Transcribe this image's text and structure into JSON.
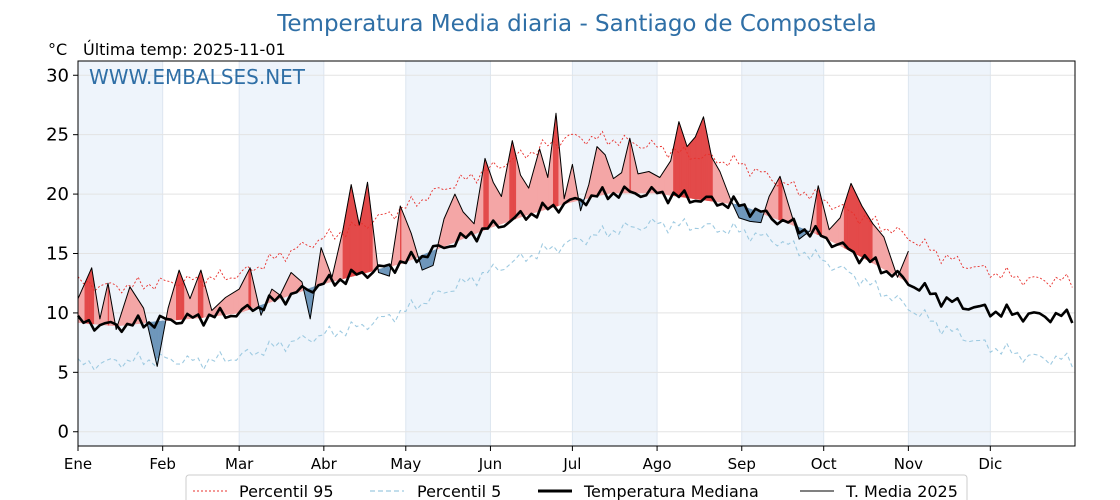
{
  "chart_data": {
    "type": "line",
    "title": "Temperatura Media diaria - Santiago de Compostela",
    "ylabel": "°C",
    "subtitle": "Última temp: 2025-11-01",
    "watermark": "WWW.EMBALSES.NET",
    "ylim": [
      -1.2,
      31.2
    ],
    "yticks": [
      0,
      5,
      10,
      15,
      20,
      25,
      30
    ],
    "months": [
      "Ene",
      "Feb",
      "Mar",
      "Abr",
      "May",
      "Jun",
      "Jul",
      "Ago",
      "Sep",
      "Oct",
      "Nov",
      "Dic"
    ],
    "grid": true,
    "legend_position": "bottom",
    "colors": {
      "p95": "#e8302c",
      "p5": "#9ecae1",
      "median": "#000000",
      "media": "#000000",
      "above_fill": "#f4a6a6",
      "above_strong": "#e34a4a",
      "below_fill": "#6f97bb",
      "shade": "#eef4fb",
      "title": "#2f6fa6"
    },
    "series": [
      {
        "name": "Percentil 95",
        "style": "dotted",
        "color": "#e8302c",
        "x": [
          1,
          15,
          31,
          46,
          60,
          75,
          90,
          105,
          120,
          135,
          151,
          166,
          181,
          196,
          212,
          227,
          243,
          258,
          273,
          288,
          304,
          319,
          334,
          349,
          365
        ],
        "y": [
          12.5,
          12.2,
          12.5,
          12.8,
          13.2,
          14.8,
          16.2,
          17.4,
          18.8,
          20.5,
          22.0,
          23.5,
          24.8,
          24.6,
          24.0,
          23.2,
          22.6,
          21.0,
          19.6,
          18.0,
          16.5,
          14.6,
          13.5,
          12.8,
          12.7
        ]
      },
      {
        "name": "Percentil 5",
        "style": "dashed",
        "color": "#9ecae1",
        "x": [
          1,
          15,
          31,
          46,
          60,
          75,
          90,
          105,
          120,
          135,
          151,
          166,
          181,
          196,
          212,
          227,
          243,
          258,
          273,
          288,
          304,
          319,
          334,
          349,
          365
        ],
        "y": [
          5.6,
          5.9,
          6.1,
          5.9,
          6.3,
          7.3,
          8.1,
          8.9,
          10.1,
          11.8,
          13.4,
          14.8,
          15.9,
          16.9,
          17.5,
          17.3,
          16.9,
          16.0,
          14.5,
          12.8,
          10.6,
          8.6,
          7.2,
          6.3,
          6.0
        ]
      },
      {
        "name": "Temperatura Mediana",
        "style": "solid-thick",
        "color": "#000000",
        "x": [
          1,
          15,
          31,
          46,
          60,
          75,
          90,
          105,
          120,
          135,
          151,
          166,
          181,
          196,
          212,
          227,
          243,
          258,
          273,
          288,
          304,
          319,
          334,
          349,
          365
        ],
        "y": [
          9.2,
          8.9,
          9.3,
          9.6,
          10.0,
          11.2,
          12.4,
          13.3,
          14.2,
          15.6,
          17.1,
          18.3,
          19.3,
          20.1,
          20.1,
          19.6,
          19.1,
          17.8,
          16.5,
          14.7,
          12.7,
          11.0,
          10.2,
          9.8,
          9.7
        ]
      },
      {
        "name": "T. Media 2025",
        "style": "solid",
        "color": "#000000",
        "x": [
          1,
          6,
          9,
          12,
          15,
          20,
          25,
          30,
          34,
          38,
          42,
          46,
          50,
          55,
          60,
          64,
          68,
          72,
          75,
          79,
          83,
          86,
          90,
          94,
          98,
          101,
          104,
          107,
          111,
          115,
          119,
          123,
          127,
          131,
          135,
          139,
          142,
          146,
          150,
          153,
          156,
          160,
          163,
          166,
          170,
          173,
          176,
          179,
          182,
          185,
          188,
          191,
          194,
          197,
          200,
          203,
          206,
          210,
          214,
          218,
          221,
          224,
          227,
          230,
          233,
          236,
          240,
          243,
          247,
          251,
          254,
          258,
          261,
          265,
          269,
          272,
          276,
          280,
          284,
          288,
          292,
          296,
          301,
          305
        ],
        "y": [
          11.2,
          13.8,
          9.5,
          12.5,
          8.6,
          12.2,
          10.4,
          5.5,
          10.4,
          13.6,
          11.2,
          13.6,
          10.2,
          11.3,
          12.0,
          13.8,
          9.8,
          12.0,
          11.5,
          13.4,
          12.6,
          9.5,
          15.5,
          13.0,
          17.0,
          20.8,
          17.4,
          21.0,
          13.4,
          13.1,
          19.0,
          16.7,
          13.6,
          14.0,
          17.9,
          20.0,
          18.5,
          17.5,
          23.0,
          21.0,
          19.8,
          24.5,
          21.6,
          20.5,
          23.8,
          21.4,
          26.8,
          19.6,
          22.5,
          18.6,
          20.8,
          24.0,
          23.3,
          21.3,
          21.8,
          24.7,
          21.7,
          21.9,
          21.4,
          22.8,
          26.1,
          24.0,
          24.8,
          26.5,
          23.1,
          21.9,
          19.5,
          18.0,
          17.7,
          17.6,
          19.8,
          21.5,
          19.2,
          16.2,
          16.9,
          20.7,
          17.0,
          18.0,
          20.9,
          19.0,
          17.5,
          16.4,
          13.0,
          15.2
        ]
      }
    ]
  },
  "legend": {
    "p95": "Percentil 95",
    "p5": "Percentil 5",
    "median": "Temperatura Mediana",
    "media": "T. Media 2025"
  }
}
